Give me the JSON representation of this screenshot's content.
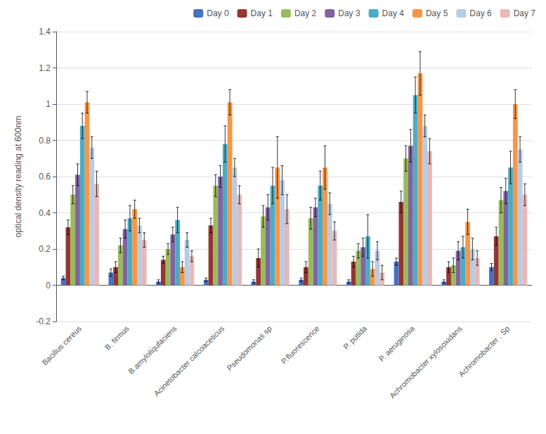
{
  "chart_data": {
    "type": "bar",
    "ylabel": "optical density reading at 600nm",
    "categories": [
      "Bacillus cereus",
      "B. firmus",
      "B.amyloliqufaciens",
      "Acinetobacter calcoaceticus",
      "Pseudomonas sp",
      "P.fluorescence",
      "P. putida",
      "P. aeruginosa",
      "Achromobacter xylosoxidans",
      "Achromobacter . Sp"
    ],
    "series": [
      {
        "name": "Day 0",
        "color": "#4472c4",
        "values": [
          0.04,
          0.07,
          0.02,
          0.03,
          0.02,
          0.03,
          0.02,
          0.13,
          0.02,
          0.1
        ],
        "errors": [
          0.01,
          0.02,
          0.01,
          0.01,
          0.01,
          0.01,
          0.01,
          0.02,
          0.01,
          0.02
        ]
      },
      {
        "name": "Day 1",
        "color": "#943634",
        "values": [
          0.32,
          0.1,
          0.14,
          0.33,
          0.15,
          0.1,
          0.13,
          0.46,
          0.1,
          0.27
        ],
        "errors": [
          0.04,
          0.03,
          0.02,
          0.04,
          0.05,
          0.03,
          0.03,
          0.06,
          0.03,
          0.05
        ]
      },
      {
        "name": "Day 2",
        "color": "#9bbb59",
        "values": [
          0.5,
          0.22,
          0.2,
          0.55,
          0.38,
          0.37,
          0.19,
          0.7,
          0.11,
          0.47
        ],
        "errors": [
          0.05,
          0.04,
          0.03,
          0.06,
          0.06,
          0.06,
          0.04,
          0.07,
          0.04,
          0.07
        ]
      },
      {
        "name": "Day 3",
        "color": "#8064a2",
        "values": [
          0.61,
          0.31,
          0.28,
          0.6,
          0.43,
          0.43,
          0.21,
          0.77,
          0.19,
          0.52
        ],
        "errors": [
          0.06,
          0.05,
          0.04,
          0.06,
          0.07,
          0.05,
          0.05,
          0.09,
          0.05,
          0.07
        ]
      },
      {
        "name": "Day 4",
        "color": "#4bacc6",
        "values": [
          0.88,
          0.37,
          0.36,
          0.78,
          0.55,
          0.55,
          0.27,
          1.05,
          0.21,
          0.65
        ],
        "errors": [
          0.07,
          0.07,
          0.07,
          0.1,
          0.1,
          0.08,
          0.12,
          0.1,
          0.06,
          0.09
        ]
      },
      {
        "name": "Day 5",
        "color": "#f79646",
        "values": [
          1.01,
          0.42,
          0.1,
          1.01,
          0.65,
          0.65,
          0.09,
          1.17,
          0.35,
          1.0
        ],
        "errors": [
          0.06,
          0.05,
          0.03,
          0.07,
          0.17,
          0.12,
          0.04,
          0.12,
          0.07,
          0.08
        ]
      },
      {
        "name": "Day 6",
        "color": "#b8cce4",
        "values": [
          0.76,
          0.33,
          0.25,
          0.65,
          0.58,
          0.45,
          0.19,
          0.88,
          0.2,
          0.75
        ],
        "errors": [
          0.06,
          0.04,
          0.04,
          0.05,
          0.08,
          0.06,
          0.05,
          0.06,
          0.06,
          0.07
        ]
      },
      {
        "name": "Day 7",
        "color": "#e6b9b8",
        "values": [
          0.56,
          0.25,
          0.16,
          0.5,
          0.42,
          0.3,
          0.07,
          0.74,
          0.15,
          0.5
        ],
        "errors": [
          0.07,
          0.04,
          0.03,
          0.05,
          0.08,
          0.05,
          0.04,
          0.07,
          0.04,
          0.06
        ]
      }
    ],
    "ylim": [
      -0.2,
      1.4
    ],
    "yticks": [
      -0.2,
      0.0,
      0.2,
      0.4,
      0.6,
      0.8,
      1.0,
      1.2,
      1.4
    ],
    "grid": true,
    "legend": "upper right"
  }
}
